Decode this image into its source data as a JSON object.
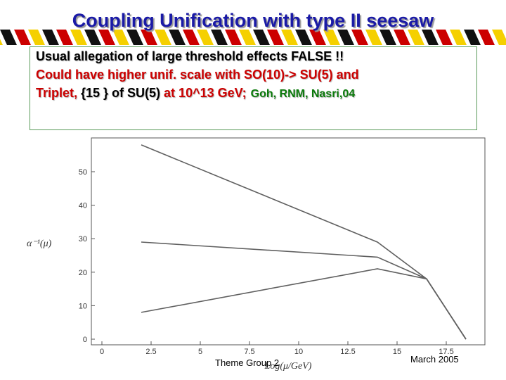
{
  "slide": {
    "title": "Coupling Unification with type II seesaw",
    "line1": "Usual allegation of large threshold effects FALSE !!",
    "line2": "Could have higher unif. scale with SO(10)-> SU(5) and",
    "line3_a": "Triplet, ",
    "line3_b": "{15 } of SU(5)",
    "line3_c": " at 10^13 GeV;",
    "line3_authors": "Goh, RNM, Nasri,04",
    "footer_left": "Theme Group 2",
    "footer_right": "March 2005",
    "stripe_colors": [
      "#f5d000",
      "#111111",
      "#cc0000"
    ]
  },
  "chart_data": {
    "type": "line",
    "xlabel": "Log(μ/GeV)",
    "ylabel": "α⁻¹(μ)",
    "xlim": [
      0,
      19
    ],
    "ylim": [
      0,
      60
    ],
    "xticks": [
      0,
      2.5,
      5,
      7.5,
      10,
      12.5,
      15,
      17.5
    ],
    "xtick_labels": [
      "0",
      "2.5",
      "5",
      "7.5",
      "10",
      "12.5",
      "15",
      "17.5"
    ],
    "yticks": [
      0,
      10,
      20,
      30,
      40,
      50
    ],
    "ytick_labels": [
      "0",
      "10",
      "20",
      "30",
      "40",
      "50"
    ],
    "line_color": "#606060",
    "series": [
      {
        "x": [
          2,
          14,
          16.5,
          18.5
        ],
        "y": [
          58,
          29,
          18,
          0
        ]
      },
      {
        "x": [
          2,
          14,
          16.5,
          18.5
        ],
        "y": [
          29,
          24.5,
          18,
          0
        ]
      },
      {
        "x": [
          2,
          14,
          16.5,
          18.5
        ],
        "y": [
          8,
          21,
          18,
          0
        ]
      }
    ]
  }
}
